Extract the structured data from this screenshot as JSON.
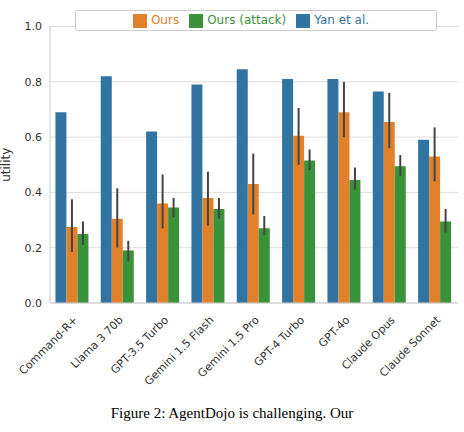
{
  "chart_data": {
    "type": "bar",
    "y_label": "utility",
    "categories": [
      "Command-R+",
      "Llama 3 70b",
      "GPT-3.5 Turbo",
      "Gemini 1.5 Flash",
      "Gemini 1.5 Pro",
      "GPT-4 Turbo",
      "GPT-4o",
      "Claude Opus",
      "Claude Sonnet"
    ],
    "series": [
      {
        "name": "Yan et al.",
        "color": "#3274a1",
        "values": [
          0.69,
          0.82,
          0.62,
          0.79,
          0.845,
          0.81,
          0.81,
          0.765,
          0.59
        ]
      },
      {
        "name": "Ours",
        "color": "#e1812c",
        "values": [
          0.275,
          0.305,
          0.36,
          0.38,
          0.43,
          0.605,
          0.69,
          0.655,
          0.53
        ],
        "errors": [
          [
            0.185,
            0.375
          ],
          [
            0.2,
            0.415
          ],
          [
            0.27,
            0.465
          ],
          [
            0.28,
            0.475
          ],
          [
            0.32,
            0.54
          ],
          [
            0.5,
            0.705
          ],
          [
            0.6,
            0.8
          ],
          [
            0.56,
            0.76
          ],
          [
            0.44,
            0.635
          ]
        ]
      },
      {
        "name": "Ours (attack)",
        "color": "#3a923a",
        "values": [
          0.25,
          0.19,
          0.345,
          0.34,
          0.27,
          0.515,
          0.445,
          0.495,
          0.295
        ],
        "errors": [
          [
            0.21,
            0.295
          ],
          [
            0.15,
            0.225
          ],
          [
            0.31,
            0.38
          ],
          [
            0.305,
            0.38
          ],
          [
            0.245,
            0.315
          ],
          [
            0.48,
            0.555
          ],
          [
            0.41,
            0.49
          ],
          [
            0.46,
            0.535
          ],
          [
            0.255,
            0.34
          ]
        ]
      }
    ],
    "ylim": [
      0,
      1
    ],
    "yticks": [
      {
        "value": 0,
        "label": "0.0"
      },
      {
        "value": 0.2,
        "label": "0.2"
      },
      {
        "value": 0.4,
        "label": "0.4"
      },
      {
        "value": 0.6,
        "label": "0.6"
      },
      {
        "value": 0.8,
        "label": "0.8"
      },
      {
        "value": 1,
        "label": "1.0"
      }
    ],
    "grid": true,
    "legend": "top",
    "annotations": [
      "Figure 2: AgentDojo is challenging. Our"
    ]
  }
}
